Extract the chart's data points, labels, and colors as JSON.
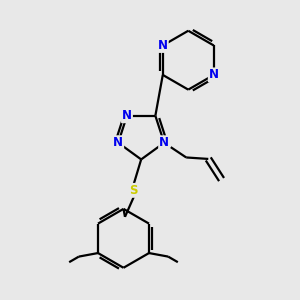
{
  "bg_color": "#e8e8e8",
  "bond_color": "#000000",
  "nitrogen_color": "#0000ee",
  "sulfur_color": "#cccc00",
  "line_width": 1.6,
  "font_size_atom": 8.5,
  "fig_size": [
    3.0,
    3.0
  ],
  "dpi": 100,
  "xlim": [
    0,
    10
  ],
  "ylim": [
    0,
    10
  ]
}
